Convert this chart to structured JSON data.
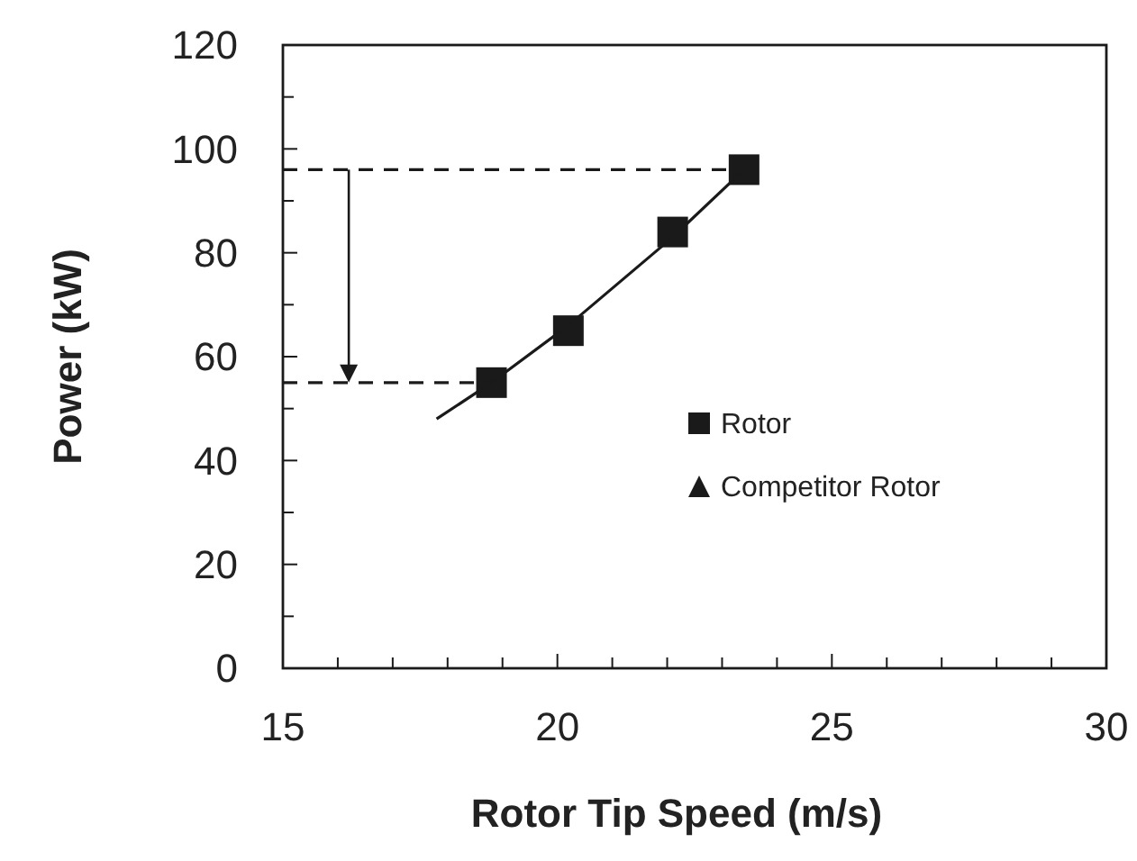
{
  "chart_data": {
    "type": "scatter",
    "xlabel": "Rotor Tip Speed (m/s)",
    "ylabel": "Power (kW)",
    "xlim": [
      15,
      30
    ],
    "xticks": [
      15,
      {
        "value": 16,
        "label": null
      },
      {
        "value": 17,
        "label": null
      },
      {
        "value": 18,
        "label": null
      },
      {
        "value": 19,
        "label": null
      },
      20,
      {
        "value": 21,
        "label": null
      },
      {
        "value": 22,
        "label": null
      },
      {
        "value": 23,
        "label": null
      },
      {
        "value": 24,
        "label": null
      },
      25,
      {
        "value": 26,
        "label": null
      },
      {
        "value": 27,
        "label": null
      },
      {
        "value": 28,
        "label": null
      },
      {
        "value": 29,
        "label": null
      },
      30
    ],
    "ylim": [
      0,
      120
    ],
    "yticks": [
      0,
      {
        "value": 10,
        "label": null
      },
      20,
      {
        "value": 30,
        "label": null
      },
      40,
      {
        "value": 50,
        "label": null
      },
      60,
      {
        "value": 70,
        "label": null
      },
      80,
      {
        "value": 90,
        "label": null
      },
      100,
      {
        "value": 110,
        "label": null
      },
      120
    ],
    "legend": "right",
    "grid": false,
    "series": [
      {
        "name": "Rotor",
        "marker": "square",
        "color": "#1a1a1a",
        "x": [
          18.8,
          20.2,
          22.1,
          23.4
        ],
        "values": [
          55,
          65,
          84,
          96
        ]
      },
      {
        "name": "Competitor Rotor",
        "type": "scatter",
        "marker": "triangle",
        "color": "#1a1a1a"
      },
      {
        "type": "line",
        "marker": "none",
        "line_style": "solid",
        "color": "#1a1a1a",
        "x": [
          17.8,
          18.8,
          20.2,
          22.1,
          23.4
        ],
        "values": [
          48,
          55,
          66,
          83,
          96
        ]
      },
      {
        "type": "line",
        "marker": "none",
        "line_style": "dashed",
        "color": "#1a1a1a",
        "x": [
          15,
          23.4
        ],
        "values": [
          96,
          96
        ]
      },
      {
        "type": "line",
        "marker": "none",
        "line_style": "dashed",
        "color": "#1a1a1a",
        "x": [
          15,
          18.8
        ],
        "values": [
          55,
          55
        ]
      }
    ]
  }
}
